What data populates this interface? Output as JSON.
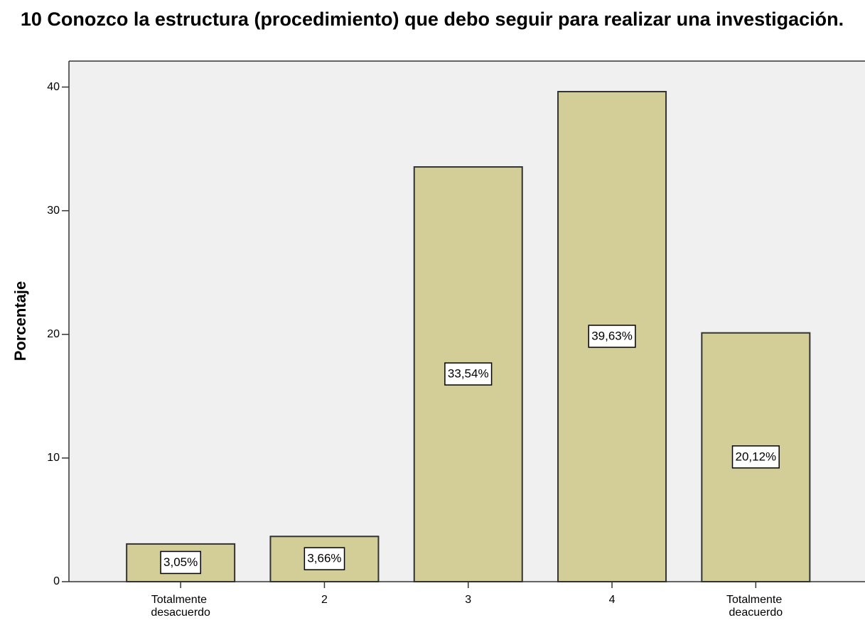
{
  "chart_data": {
    "type": "bar",
    "title": "10 Conozco la estructura (procedimiento) que debo seguir para realizar una investigación.",
    "y_label": "Porcentaje",
    "categories": [
      "Totalmente desacuerdo",
      "2",
      "3",
      "4",
      "Totalmente deacuerdo"
    ],
    "values": [
      3.05,
      3.66,
      33.54,
      39.63,
      20.12
    ],
    "value_labels": [
      "3,05%",
      "3,66%",
      "33,54%",
      "39,63%",
      "20,12%"
    ],
    "color": "#d3ce97",
    "ylim": [
      0,
      42.1
    ],
    "yticks": [
      0,
      10,
      20,
      30,
      40
    ],
    "grid": false
  }
}
